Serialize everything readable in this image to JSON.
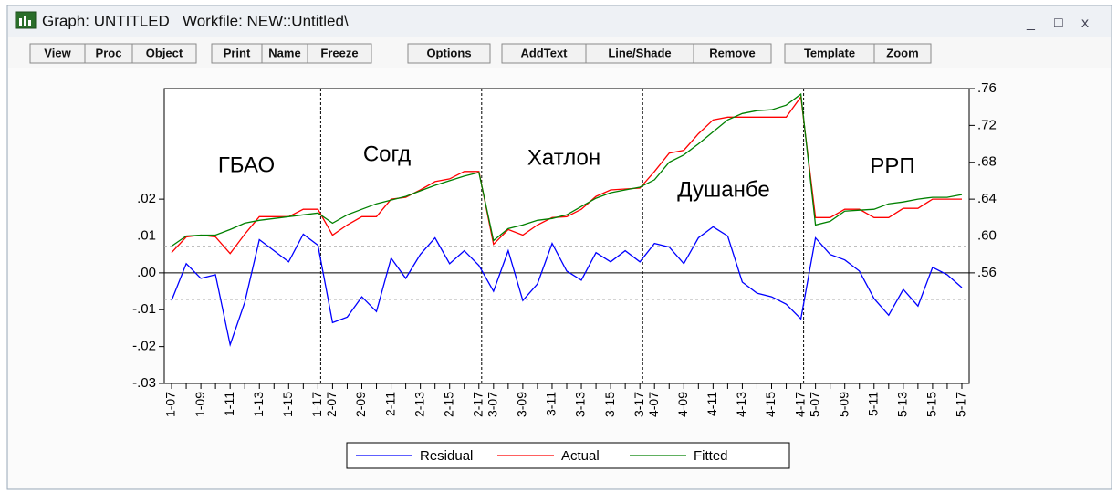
{
  "window": {
    "title": "Graph: UNTITLED   Workfile: NEW::Untitled\\",
    "controls": [
      "_",
      "□",
      "x"
    ],
    "toolbar": [
      "View",
      "Proc",
      "Object",
      "Print",
      "Name",
      "Freeze",
      "Options",
      "AddText",
      "Line/Shade",
      "Remove",
      "Template",
      "Zoom"
    ]
  },
  "chart_data": {
    "type": "line",
    "categories": [
      "1-07",
      null,
      "1-09",
      null,
      "1-11",
      null,
      "1-13",
      null,
      "1-15",
      null,
      "1-17",
      "2-07",
      null,
      "2-09",
      null,
      "2-11",
      null,
      "2-13",
      null,
      "2-15",
      null,
      "2-17",
      "3-07",
      null,
      "3-09",
      null,
      "3-11",
      null,
      "3-13",
      null,
      "3-15",
      null,
      "3-17",
      "4-07",
      null,
      "4-09",
      null,
      "4-11",
      null,
      "4-13",
      null,
      "4-15",
      null,
      "4-17",
      "5-07",
      null,
      "5-09",
      null,
      "5-11",
      null,
      "5-13",
      null,
      "5-15",
      null,
      "5-17"
    ],
    "series": [
      {
        "name": "Residual",
        "color": "#0000ff",
        "axis": "y",
        "values": [
          -0.0075,
          0.0025,
          -0.0015,
          -0.0005,
          -0.0195,
          -0.008,
          0.009,
          0.006,
          0.003,
          0.0105,
          0.0075,
          -0.0135,
          -0.012,
          -0.0065,
          -0.0105,
          0.004,
          -0.0015,
          0.005,
          0.0095,
          0.0025,
          0.006,
          0.002,
          -0.005,
          0.006,
          -0.0075,
          -0.003,
          0.008,
          0.0005,
          -0.002,
          0.0055,
          0.003,
          0.006,
          0.003,
          0.008,
          0.007,
          0.0025,
          0.0095,
          0.0125,
          0.01,
          -0.0025,
          -0.0055,
          -0.0065,
          -0.0085,
          -0.0125,
          0.0095,
          0.005,
          0.0035,
          0.0005,
          -0.007,
          -0.0115,
          -0.0045,
          -0.009,
          0.0015,
          -0.0005,
          -0.004
        ]
      },
      {
        "name": "Actual",
        "color": "#ff0000",
        "axis": "y2",
        "values": [
          0.582,
          0.599,
          0.601,
          0.599,
          0.581,
          0.602,
          0.621,
          0.621,
          0.621,
          0.629,
          0.629,
          0.601,
          0.612,
          0.621,
          0.621,
          0.64,
          0.642,
          0.65,
          0.659,
          0.662,
          0.67,
          0.67,
          0.591,
          0.607,
          0.601,
          0.612,
          0.62,
          0.621,
          0.629,
          0.643,
          0.65,
          0.651,
          0.652,
          0.67,
          0.69,
          0.693,
          0.711,
          0.726,
          0.729,
          0.729,
          0.729,
          0.729,
          0.729,
          0.751,
          0.62,
          0.62,
          0.629,
          0.629,
          0.62,
          0.62,
          0.63,
          0.63,
          0.64,
          0.64,
          0.64
        ]
      },
      {
        "name": "Fitted",
        "color": "#008000",
        "axis": "y2",
        "values": [
          0.589,
          0.6,
          0.601,
          0.601,
          0.607,
          0.614,
          0.617,
          0.619,
          0.621,
          0.623,
          0.625,
          0.614,
          0.623,
          0.629,
          0.635,
          0.639,
          0.643,
          0.649,
          0.655,
          0.66,
          0.665,
          0.669,
          0.595,
          0.608,
          0.612,
          0.617,
          0.619,
          0.623,
          0.632,
          0.641,
          0.647,
          0.65,
          0.653,
          0.661,
          0.68,
          0.688,
          0.7,
          0.713,
          0.726,
          0.733,
          0.736,
          0.737,
          0.742,
          0.754,
          0.612,
          0.616,
          0.627,
          0.628,
          0.629,
          0.635,
          0.637,
          0.64,
          0.642,
          0.642,
          0.645
        ]
      }
    ],
    "ylim": [
      -0.03,
      0.05
    ],
    "yticks": [
      {
        "value": -0.03,
        "label": "-.03"
      },
      {
        "value": -0.02,
        "label": "-.02"
      },
      {
        "value": -0.01,
        "label": "-.01"
      },
      {
        "value": 0,
        "label": ".00"
      },
      {
        "value": 0.01,
        "label": ".01"
      },
      {
        "value": 0.02,
        "label": ".02"
      }
    ],
    "y2lim": [
      0.44,
      0.76
    ],
    "y2ticks": [
      {
        "value": 0.56,
        "label": ".56"
      },
      {
        "value": 0.6,
        "label": ".60"
      },
      {
        "value": 0.64,
        "label": ".64"
      },
      {
        "value": 0.68,
        "label": ".68"
      },
      {
        "value": 0.72,
        "label": ".72"
      },
      {
        "value": 0.76,
        "label": ".76"
      }
    ],
    "reference_lines": [
      0.0072,
      -0.0072
    ],
    "annotations": [
      "ГБАО",
      "Согд",
      "Хатлон",
      "Душанбе",
      "РРП"
    ],
    "legend": "bottom"
  }
}
